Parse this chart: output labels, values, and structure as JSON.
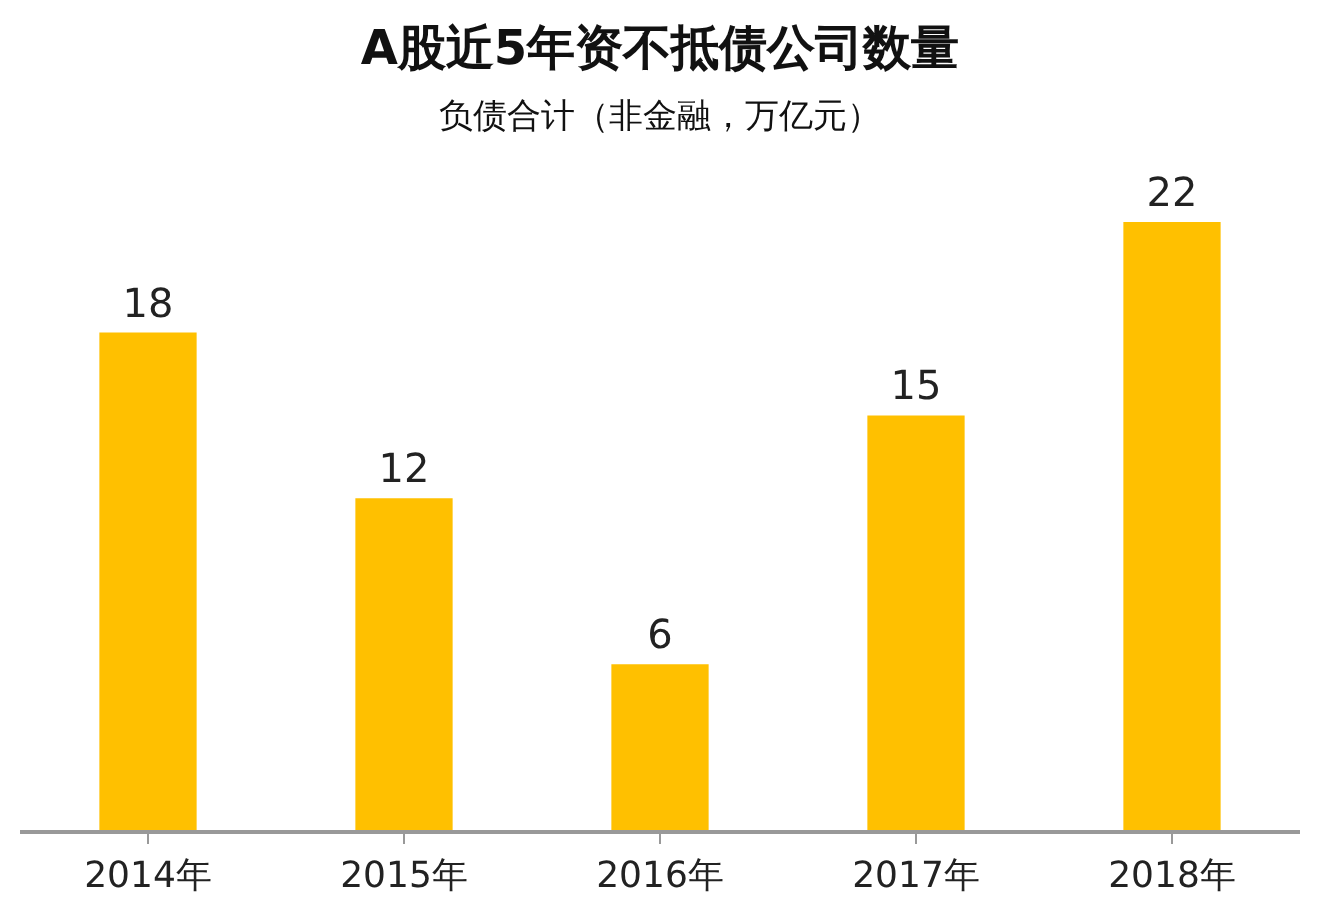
{
  "chart_data": {
    "type": "bar",
    "title": "A股近5年资不抵债公司数量",
    "subtitle": "负债合计（非金融，万亿元）",
    "categories": [
      "2014年",
      "2015年",
      "2016年",
      "2017年",
      "2018年"
    ],
    "values": [
      18,
      12,
      6,
      15,
      22
    ],
    "color": "#ffc000",
    "data_labels": true,
    "legend": false
  }
}
